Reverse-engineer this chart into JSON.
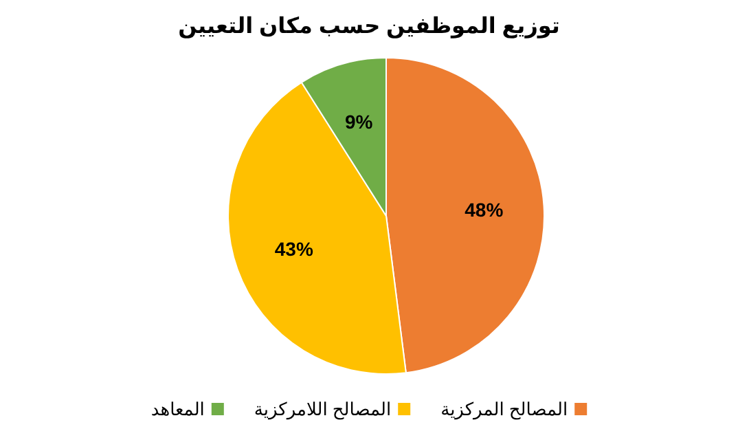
{
  "chart_data": {
    "type": "pie",
    "title": "توزيع الموظفين حسب مكان التعيين",
    "categories": [
      "المصالح المركزية",
      "المصالح اللامركزية",
      "المعاهد"
    ],
    "values": [
      48,
      43,
      9
    ],
    "colors": [
      "#ed7d31",
      "#ffc000",
      "#70ad47"
    ],
    "value_labels": [
      "48%",
      "43%",
      "9%"
    ],
    "legend": "bottom"
  }
}
